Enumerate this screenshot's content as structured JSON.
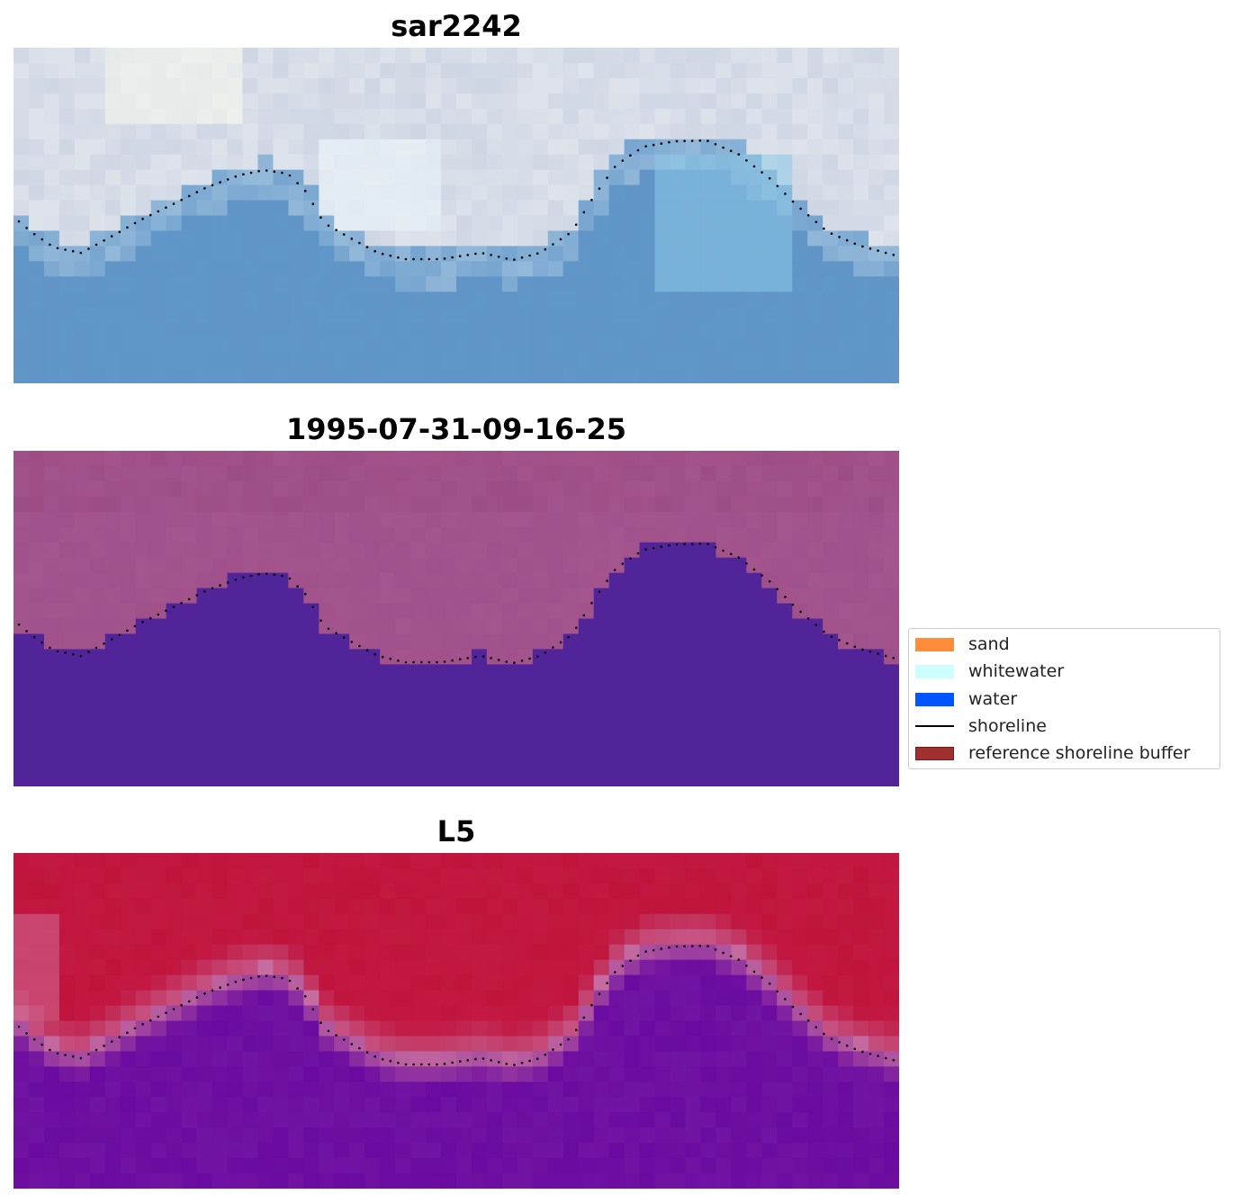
{
  "panels": [
    {
      "title": "sar2242",
      "style": "sar"
    },
    {
      "title": "1995-07-31-09-16-25",
      "style": "classified"
    },
    {
      "title": "L5",
      "style": "probability"
    }
  ],
  "legend": {
    "items": [
      {
        "label": "sand",
        "kind": "patch",
        "color": "#ff8c3a"
      },
      {
        "label": "whitewater",
        "kind": "patch",
        "color": "#ccffff"
      },
      {
        "label": "water",
        "kind": "patch",
        "color": "#0055ff"
      },
      {
        "label": "shoreline",
        "kind": "line",
        "color": "#000000"
      },
      {
        "label": "reference shoreline buffer",
        "kind": "patch",
        "color": "#a03030",
        "edge": "#7a1a1a"
      }
    ]
  },
  "colors": {
    "classified_land": "#a0508a",
    "classified_water": "#52249a",
    "probability_land": "#c0143c",
    "probability_water": "#6a0aa0",
    "shoreline_dots": "#000000"
  }
}
